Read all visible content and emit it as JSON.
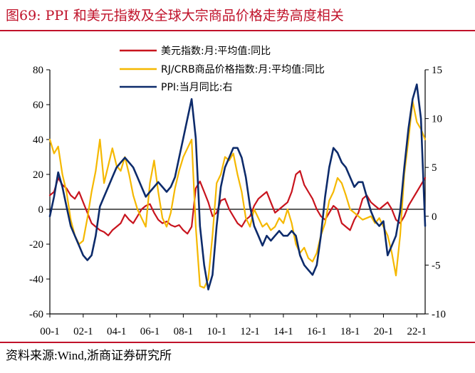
{
  "figure": {
    "title": "图69:   PPI 和美元指数及全球大宗商品价格走势高度相关",
    "source": "资料来源:Wind,浙商证券研究所",
    "colors": {
      "accent": "#c0122a",
      "usd": "#c8141e",
      "crb": "#f5b800",
      "ppi": "#0d2b6b"
    }
  },
  "chart_data": {
    "type": "line",
    "title": "",
    "xlabel": "",
    "ylabel_left": "",
    "ylabel_right": "",
    "x_ticks": [
      "00-1",
      "02-1",
      "04-1",
      "06-1",
      "08-1",
      "10-1",
      "12-1",
      "14-1",
      "16-1",
      "18-1",
      "20-1",
      "22-1"
    ],
    "x_range": [
      2000.0,
      2022.5
    ],
    "y_left": {
      "ticks": [
        "80",
        "60",
        "40",
        "20",
        "0",
        "-20",
        "-40",
        "-60"
      ],
      "range": [
        -60,
        80
      ]
    },
    "y_right": {
      "ticks": [
        "15",
        "10",
        "5",
        "0",
        "-5",
        "-10"
      ],
      "range": [
        -10,
        15
      ]
    },
    "legend_position": "top-center",
    "grid": false,
    "series": [
      {
        "name": "美元指数:月:平均值:同比",
        "axis": "left",
        "color": "#c8141e",
        "x": [
          2000.0,
          2000.25,
          2000.5,
          2000.75,
          2001.0,
          2001.25,
          2001.5,
          2001.75,
          2002.0,
          2002.25,
          2002.5,
          2002.75,
          2003.0,
          2003.25,
          2003.5,
          2003.75,
          2004.0,
          2004.25,
          2004.5,
          2004.75,
          2005.0,
          2005.25,
          2005.5,
          2005.75,
          2006.0,
          2006.25,
          2006.5,
          2006.75,
          2007.0,
          2007.25,
          2007.5,
          2007.75,
          2008.0,
          2008.25,
          2008.5,
          2008.75,
          2009.0,
          2009.25,
          2009.5,
          2009.75,
          2010.0,
          2010.25,
          2010.5,
          2010.75,
          2011.0,
          2011.25,
          2011.5,
          2011.75,
          2012.0,
          2012.25,
          2012.5,
          2012.75,
          2013.0,
          2013.25,
          2013.5,
          2013.75,
          2014.0,
          2014.25,
          2014.5,
          2014.75,
          2015.0,
          2015.25,
          2015.5,
          2015.75,
          2016.0,
          2016.25,
          2016.5,
          2016.75,
          2017.0,
          2017.25,
          2017.5,
          2017.75,
          2018.0,
          2018.25,
          2018.5,
          2018.75,
          2019.0,
          2019.25,
          2019.5,
          2019.75,
          2020.0,
          2020.25,
          2020.5,
          2020.75,
          2021.0,
          2021.25,
          2021.5,
          2021.75,
          2022.0,
          2022.25,
          2022.5
        ],
        "values": [
          8,
          10,
          18,
          14,
          12,
          8,
          6,
          10,
          4,
          -2,
          -8,
          -10,
          -12,
          -13,
          -15,
          -12,
          -10,
          -8,
          -3,
          -6,
          -8,
          -4,
          0,
          2,
          3,
          -2,
          -6,
          -8,
          -7,
          -9,
          -10,
          -9,
          -12,
          -14,
          -10,
          12,
          16,
          10,
          4,
          -4,
          -2,
          5,
          6,
          0,
          -4,
          -8,
          -10,
          -6,
          -4,
          2,
          6,
          8,
          10,
          4,
          -2,
          0,
          2,
          4,
          10,
          20,
          22,
          14,
          10,
          6,
          0,
          -4,
          -6,
          -2,
          2,
          0,
          -8,
          -10,
          -12,
          -6,
          -2,
          6,
          8,
          4,
          2,
          0,
          2,
          4,
          0,
          -6,
          -8,
          -4,
          2,
          6,
          10,
          14,
          18
        ]
      },
      {
        "name": "RJ/CRB商品价格指数:月:平均值:同比",
        "axis": "left",
        "color": "#f5b800",
        "x": [
          2000.0,
          2000.25,
          2000.5,
          2000.75,
          2001.0,
          2001.25,
          2001.5,
          2001.75,
          2002.0,
          2002.25,
          2002.5,
          2002.75,
          2003.0,
          2003.25,
          2003.5,
          2003.75,
          2004.0,
          2004.25,
          2004.5,
          2004.75,
          2005.0,
          2005.25,
          2005.5,
          2005.75,
          2006.0,
          2006.25,
          2006.5,
          2006.75,
          2007.0,
          2007.25,
          2007.5,
          2007.75,
          2008.0,
          2008.25,
          2008.5,
          2008.75,
          2009.0,
          2009.25,
          2009.5,
          2009.75,
          2010.0,
          2010.25,
          2010.5,
          2010.75,
          2011.0,
          2011.25,
          2011.5,
          2011.75,
          2012.0,
          2012.25,
          2012.5,
          2012.75,
          2013.0,
          2013.25,
          2013.5,
          2013.75,
          2014.0,
          2014.25,
          2014.5,
          2014.75,
          2015.0,
          2015.25,
          2015.5,
          2015.75,
          2016.0,
          2016.25,
          2016.5,
          2016.75,
          2017.0,
          2017.25,
          2017.5,
          2017.75,
          2018.0,
          2018.25,
          2018.5,
          2018.75,
          2019.0,
          2019.25,
          2019.5,
          2019.75,
          2020.0,
          2020.25,
          2020.5,
          2020.75,
          2021.0,
          2021.25,
          2021.5,
          2021.75,
          2022.0,
          2022.25,
          2022.5
        ],
        "values": [
          40,
          32,
          36,
          20,
          10,
          -6,
          -15,
          -20,
          -18,
          -5,
          10,
          22,
          40,
          15,
          25,
          35,
          25,
          22,
          30,
          20,
          8,
          0,
          -5,
          -10,
          15,
          28,
          10,
          -5,
          -10,
          -2,
          12,
          22,
          30,
          35,
          40,
          -10,
          -44,
          -45,
          -40,
          -15,
          15,
          20,
          30,
          28,
          32,
          20,
          10,
          -5,
          -10,
          0,
          -5,
          -10,
          -8,
          -12,
          -10,
          -5,
          -8,
          0,
          -8,
          -20,
          -25,
          -22,
          -28,
          -30,
          -25,
          -15,
          -8,
          5,
          10,
          18,
          15,
          8,
          0,
          -2,
          -4,
          -6,
          -5,
          -4,
          -8,
          -5,
          -10,
          -15,
          -25,
          -38,
          -15,
          20,
          40,
          62,
          50,
          46,
          40
        ]
      },
      {
        "name": "PPI:当月同比:右",
        "axis": "right",
        "color": "#0d2b6b",
        "x": [
          2000.0,
          2000.25,
          2000.5,
          2000.75,
          2001.0,
          2001.25,
          2001.5,
          2001.75,
          2002.0,
          2002.25,
          2002.5,
          2002.75,
          2003.0,
          2003.25,
          2003.5,
          2003.75,
          2004.0,
          2004.25,
          2004.5,
          2004.75,
          2005.0,
          2005.25,
          2005.5,
          2005.75,
          2006.0,
          2006.25,
          2006.5,
          2006.75,
          2007.0,
          2007.25,
          2007.5,
          2007.75,
          2008.0,
          2008.25,
          2008.5,
          2008.75,
          2009.0,
          2009.25,
          2009.5,
          2009.75,
          2010.0,
          2010.25,
          2010.5,
          2010.75,
          2011.0,
          2011.25,
          2011.5,
          2011.75,
          2012.0,
          2012.25,
          2012.5,
          2012.75,
          2013.0,
          2013.25,
          2013.5,
          2013.75,
          2014.0,
          2014.25,
          2014.5,
          2014.75,
          2015.0,
          2015.25,
          2015.5,
          2015.75,
          2016.0,
          2016.25,
          2016.5,
          2016.75,
          2017.0,
          2017.25,
          2017.5,
          2017.75,
          2018.0,
          2018.25,
          2018.5,
          2018.75,
          2019.0,
          2019.25,
          2019.5,
          2019.75,
          2020.0,
          2020.25,
          2020.5,
          2020.75,
          2021.0,
          2021.25,
          2021.5,
          2021.75,
          2022.0,
          2022.25,
          2022.5
        ],
        "values": [
          0,
          2,
          4.5,
          3,
          1,
          -1,
          -2,
          -3,
          -4,
          -4.5,
          -4,
          -2,
          1,
          2,
          3,
          4,
          5,
          5.5,
          6,
          5.5,
          5,
          4,
          3,
          2,
          2.5,
          3,
          3.5,
          3,
          2.5,
          3,
          4,
          6,
          8,
          10,
          12,
          8,
          -1,
          -5,
          -7.5,
          -6,
          -1,
          3,
          5,
          6,
          7,
          7,
          6,
          4,
          1,
          -1,
          -2,
          -3,
          -2,
          -2.5,
          -2,
          -1.5,
          -2,
          -2,
          -1.5,
          -2,
          -4,
          -5,
          -5.5,
          -6,
          -5,
          -2,
          2,
          5,
          7,
          6.5,
          5.5,
          5,
          4,
          3,
          3.5,
          3.5,
          2,
          0.5,
          -0.5,
          -1,
          -0.5,
          -4,
          -3,
          -2,
          0.5,
          5,
          9,
          12,
          13.5,
          10,
          -1
        ]
      }
    ]
  }
}
